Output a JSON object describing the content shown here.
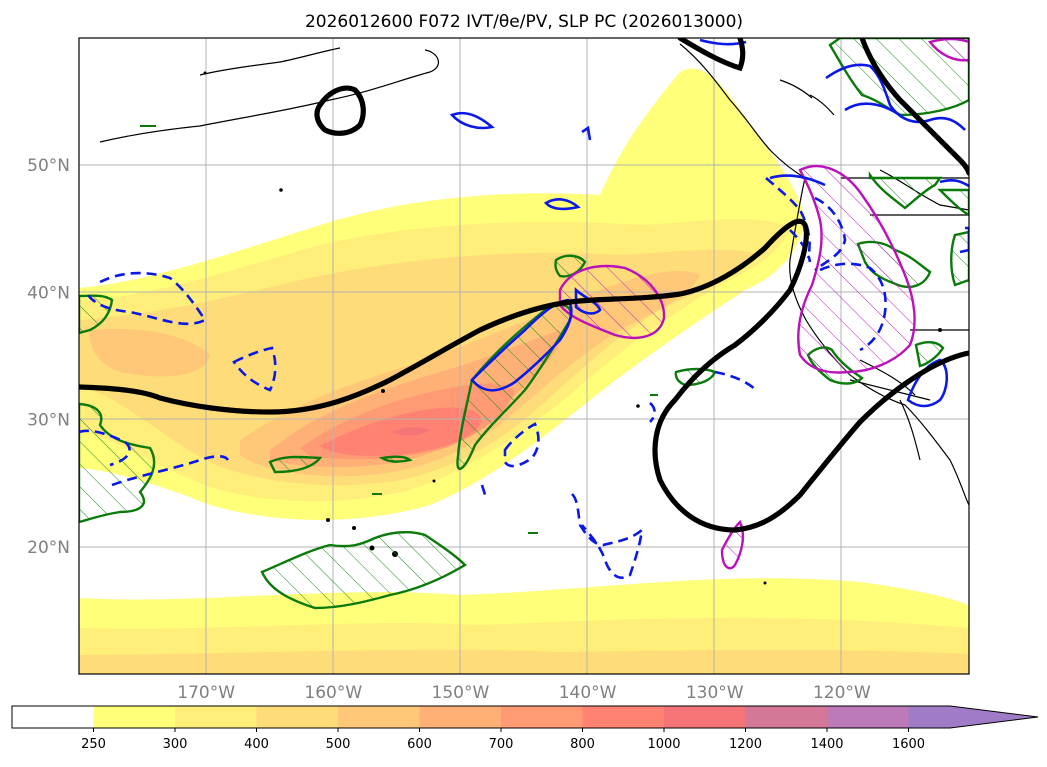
{
  "title": "2026012600 F072 IVT/θe/PV, SLP PC (2026013000)",
  "map": {
    "projection": "PlateCarree",
    "extent_lon": [
      -180,
      -110
    ],
    "extent_lat": [
      10,
      60
    ],
    "lon_ticks": [
      {
        "value": -170,
        "label": "170°W"
      },
      {
        "value": -160,
        "label": "160°W"
      },
      {
        "value": -150,
        "label": "150°W"
      },
      {
        "value": -140,
        "label": "140°W"
      },
      {
        "value": -130,
        "label": "130°W"
      },
      {
        "value": -120,
        "label": "120°W"
      }
    ],
    "lat_ticks": [
      {
        "value": 50,
        "label": "50°N"
      },
      {
        "value": 40,
        "label": "40°N"
      },
      {
        "value": 30,
        "label": "30°N"
      },
      {
        "value": 20,
        "label": "20°N"
      }
    ],
    "gridlines": true
  },
  "colorbar": {
    "extend": "max",
    "levels": [
      {
        "label": "250",
        "color": "#ffffff"
      },
      {
        "label": "300",
        "color": "#ffff7a"
      },
      {
        "label": "400",
        "color": "#ffee7a"
      },
      {
        "label": "500",
        "color": "#ffdc7a"
      },
      {
        "label": "600",
        "color": "#ffc878"
      },
      {
        "label": "700",
        "color": "#ffb076"
      },
      {
        "label": "800",
        "color": "#ff9a74"
      },
      {
        "label": "1000",
        "color": "#ff8272"
      },
      {
        "label": "1200",
        "color": "#f47478"
      },
      {
        "label": "1400",
        "color": "#d47898"
      },
      {
        "label": "1600",
        "color": "#bc7ab8"
      },
      {
        "label": "",
        "color": "#a07cc6"
      }
    ]
  }
}
